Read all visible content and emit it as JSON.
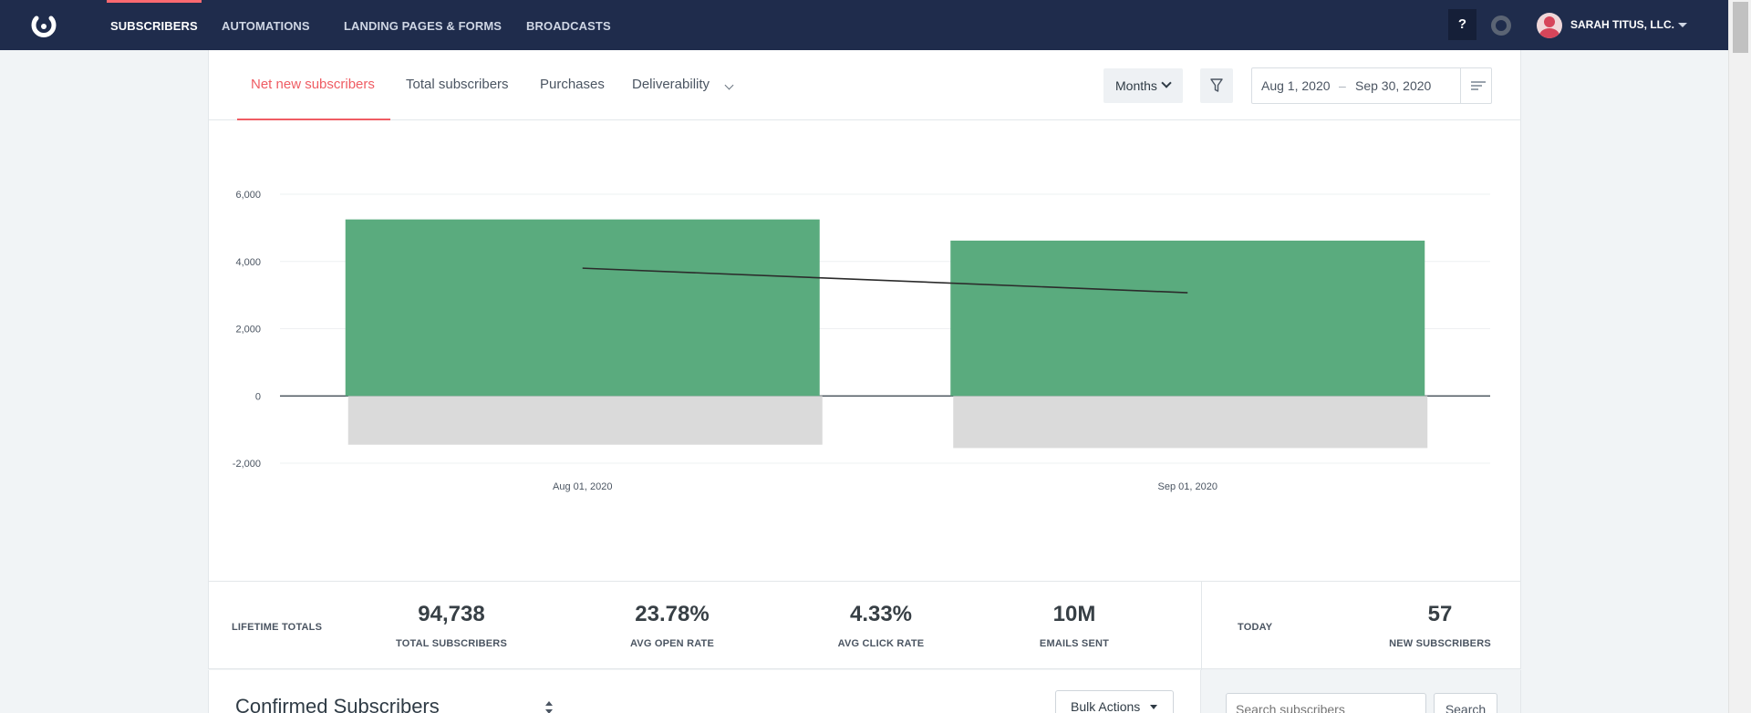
{
  "nav": {
    "items": [
      "SUBSCRIBERS",
      "AUTOMATIONS",
      "LANDING PAGES & FORMS",
      "BROADCASTS"
    ],
    "help_label": "?",
    "account_name": "SARAH TITUS, LLC."
  },
  "tabs": {
    "items": [
      "Net new subscribers",
      "Total subscribers",
      "Purchases",
      "Deliverability"
    ]
  },
  "controls": {
    "period": "Months",
    "date_start": "Aug 1, 2020",
    "date_separator": "–",
    "date_end": "Sep 30, 2020"
  },
  "chart_data": {
    "type": "bar",
    "categories": [
      "Aug 01, 2020",
      "Sep 01, 2020"
    ],
    "series": [
      {
        "values": [
          5250,
          4620
        ]
      },
      {
        "values": [
          -1450,
          -1550
        ]
      },
      {
        "values": [
          3800,
          3070
        ]
      }
    ],
    "ylim": [
      -2000,
      6000
    ],
    "yticks": [
      6000,
      4000,
      2000,
      0,
      -2000
    ],
    "ytick_labels": [
      "6,000",
      "4,000",
      "2,000",
      "0",
      "-2,000"
    ],
    "colors": {
      "positive": "#5aab7e",
      "negative": "#dadada",
      "line": "#2b2b2b"
    }
  },
  "stats": {
    "lifetime_label": "LIFETIME TOTALS",
    "total_subscribers_value": "94,738",
    "total_subscribers_label": "TOTAL SUBSCRIBERS",
    "avg_open_rate_value": "23.78%",
    "avg_open_rate_label": "AVG OPEN RATE",
    "avg_click_rate_value": "4.33%",
    "avg_click_rate_label": "AVG CLICK RATE",
    "emails_sent_value": "10M",
    "emails_sent_label": "EMAILS SENT",
    "today_label": "TODAY",
    "new_subscribers_value": "57",
    "new_subscribers_label": "NEW SUBSCRIBERS"
  },
  "list": {
    "title": "Confirmed Subscribers",
    "bulk_actions_label": "Bulk Actions",
    "search_placeholder": "Search subscribers",
    "search_button_label": "Search"
  },
  "colors": {
    "nav_bg": "#1f2c4c",
    "accent": "#ef5c63"
  }
}
